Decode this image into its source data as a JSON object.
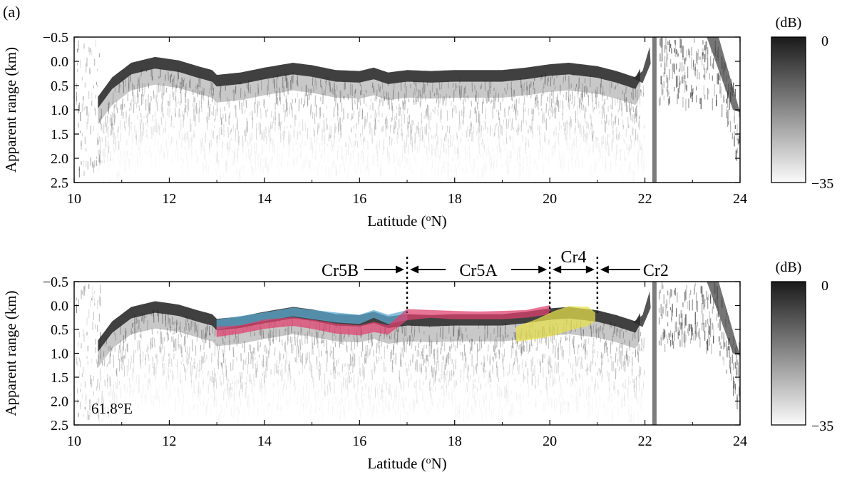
{
  "figure": {
    "panel_label": "(a)"
  },
  "chart_data": [
    {
      "type": "heatmap",
      "panel": "top",
      "xlabel": "Latitude (oN)",
      "ylabel": "Apparent range (km)",
      "xlim": [
        10,
        24
      ],
      "ylim": [
        2.5,
        -0.5
      ],
      "y_inverted": true,
      "xticks": [
        10,
        12,
        14,
        16,
        18,
        20,
        22,
        24
      ],
      "yticks": [
        "−0.5",
        "0.0",
        "0.5",
        "1.0",
        "1.5",
        "2.0",
        "2.5"
      ],
      "ytick_values": [
        -0.5,
        0.0,
        0.5,
        1.0,
        1.5,
        2.0,
        2.5
      ],
      "colorbar": {
        "unit": "(dB)",
        "max_label": "0",
        "min_label": "−35",
        "range": [
          -35,
          0
        ],
        "colormap": "gray (black = 0 dB, white = −35 dB)"
      },
      "surface_echo": {
        "x": [
          10.5,
          10.8,
          11.2,
          11.7,
          12.2,
          12.6,
          12.9,
          13.0,
          13.5,
          14.0,
          14.6,
          15.0,
          15.5,
          16.0,
          16.3,
          16.6,
          17.0,
          17.5,
          18.0,
          18.5,
          19.0,
          19.5,
          20.0,
          20.4,
          21.0,
          21.4,
          21.8,
          22.0
        ],
        "y": [
          0.75,
          0.35,
          0.05,
          -0.07,
          0.0,
          0.12,
          0.2,
          0.3,
          0.25,
          0.15,
          0.05,
          0.1,
          0.2,
          0.22,
          0.15,
          0.25,
          0.2,
          0.22,
          0.2,
          0.2,
          0.2,
          0.15,
          0.08,
          0.05,
          0.12,
          0.22,
          0.35,
          0.0
        ]
      },
      "gap_x": 22.2
    },
    {
      "type": "heatmap",
      "panel": "bottom",
      "xlabel": "Latitude (oN)",
      "ylabel": "Apparent range (km)",
      "xlim": [
        10,
        24
      ],
      "ylim": [
        2.5,
        -0.5
      ],
      "y_inverted": true,
      "xticks": [
        10,
        12,
        14,
        16,
        18,
        20,
        22,
        24
      ],
      "yticks": [
        "−0.5",
        "0.0",
        "0.5",
        "1.0",
        "1.5",
        "2.0",
        "2.5"
      ],
      "ytick_values": [
        -0.5,
        0.0,
        0.5,
        1.0,
        1.5,
        2.0,
        2.5
      ],
      "colorbar": {
        "unit": "(dB)",
        "max_label": "0",
        "min_label": "−35",
        "range": [
          -35,
          0
        ],
        "colormap": "gray (black = 0 dB, white = −35 dB)"
      },
      "longitude_label": "61.8°E",
      "regions": [
        {
          "label": "Cr5B",
          "x_range": [
            13,
            17
          ]
        },
        {
          "label": "Cr5A",
          "x_range": [
            17,
            20
          ]
        },
        {
          "label": "Cr4",
          "x_range": [
            20,
            21
          ]
        },
        {
          "label": "Cr2",
          "x_range": [
            21,
            24
          ]
        }
      ],
      "boundaries_x": [
        17,
        20,
        21
      ],
      "highlighted_reflectors": [
        {
          "color": "#5aaad2",
          "x": [
            13.0,
            14.0,
            14.6,
            15.5,
            16.0,
            16.3,
            16.6,
            17.0
          ],
          "y_top": [
            0.3,
            0.15,
            0.05,
            0.15,
            0.2,
            0.1,
            0.2,
            0.1
          ],
          "y_bottom": [
            0.5,
            0.32,
            0.22,
            0.35,
            0.38,
            0.25,
            0.38,
            0.3
          ]
        },
        {
          "color": "#e0406e",
          "x": [
            13.0,
            13.5,
            14.0,
            14.6,
            15.0,
            15.5,
            16.0,
            16.3,
            16.6,
            17.0,
            17.5,
            18.0,
            18.5,
            19.0,
            19.5,
            20.0
          ],
          "y_top": [
            0.45,
            0.42,
            0.3,
            0.25,
            0.3,
            0.38,
            0.42,
            0.35,
            0.42,
            0.08,
            0.1,
            0.12,
            0.13,
            0.12,
            0.1,
            0.0
          ],
          "y_bottom": [
            0.65,
            0.58,
            0.48,
            0.42,
            0.48,
            0.58,
            0.62,
            0.55,
            0.6,
            0.3,
            0.25,
            0.28,
            0.28,
            0.28,
            0.25,
            0.18
          ]
        },
        {
          "color": "#e8e04a",
          "x": [
            19.3,
            19.7,
            20.1,
            20.4,
            20.8,
            20.95
          ],
          "y_top": [
            0.45,
            0.3,
            0.12,
            0.02,
            0.03,
            0.15
          ],
          "y_bottom": [
            0.75,
            0.7,
            0.62,
            0.52,
            0.42,
            0.32
          ]
        }
      ],
      "surface_echo": {
        "x": [
          10.5,
          10.8,
          11.2,
          11.7,
          12.2,
          12.6,
          12.9,
          21.0,
          21.4,
          21.8,
          22.0
        ],
        "y": [
          0.75,
          0.35,
          0.05,
          -0.07,
          0.0,
          0.12,
          0.2,
          0.2,
          0.3,
          0.45,
          0.05
        ]
      },
      "gap_x": 22.2
    }
  ]
}
